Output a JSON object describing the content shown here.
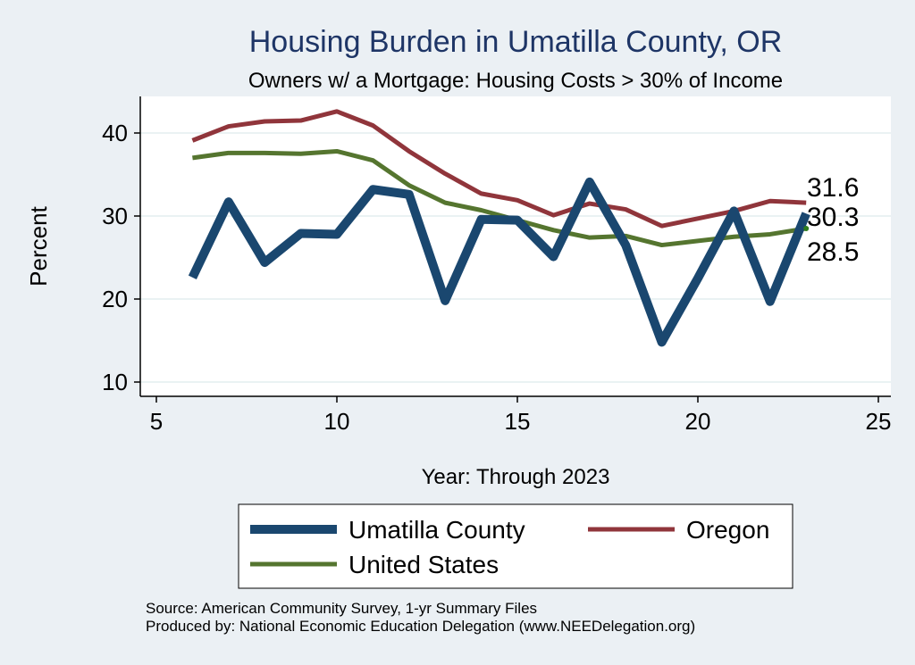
{
  "chart_data": {
    "type": "line",
    "title": "Housing Burden in Umatilla County, OR",
    "subtitle": "Owners w/ a Mortgage: Housing Costs > 30% of Income",
    "xlabel": "Year: Through 2023",
    "ylabel": "Percent",
    "xlim": [
      5,
      25
    ],
    "ylim": [
      10,
      45
    ],
    "xticks": [
      5,
      10,
      15,
      20,
      25
    ],
    "yticks": [
      10,
      20,
      30,
      40
    ],
    "grid": true,
    "legend": "bottom",
    "x": [
      6,
      7,
      8,
      9,
      10,
      11,
      12,
      13,
      14,
      15,
      16,
      17,
      18,
      19,
      20,
      21,
      22,
      23
    ],
    "series": [
      {
        "name": "Umatilla County",
        "color": "#1a476f",
        "values": [
          22.6,
          31.7,
          24.4,
          27.9,
          27.8,
          33.2,
          32.6,
          19.8,
          29.6,
          29.5,
          25.1,
          34.1,
          26.5,
          14.8,
          22.5,
          30.6,
          19.7,
          30.3
        ]
      },
      {
        "name": "Oregon",
        "color": "#90353b",
        "values": [
          39.1,
          40.8,
          41.4,
          41.5,
          42.6,
          40.9,
          37.8,
          35.1,
          32.7,
          31.9,
          30.1,
          31.5,
          30.8,
          28.8,
          29.7,
          30.6,
          31.8,
          31.6
        ]
      },
      {
        "name": "United States",
        "color": "#55752f",
        "values": [
          37.0,
          37.6,
          37.6,
          37.5,
          37.8,
          36.7,
          33.7,
          31.6,
          30.7,
          29.5,
          28.3,
          27.4,
          27.6,
          26.5,
          27.0,
          27.5,
          27.8,
          28.5
        ]
      }
    ],
    "end_labels": [
      "31.6",
      "30.3",
      "28.5"
    ]
  },
  "footer": {
    "source": "Source: American Community Survey, 1-yr Summary Files",
    "producer": "Produced by: National Economic Education Delegation (www.NEEDelegation.org)"
  }
}
